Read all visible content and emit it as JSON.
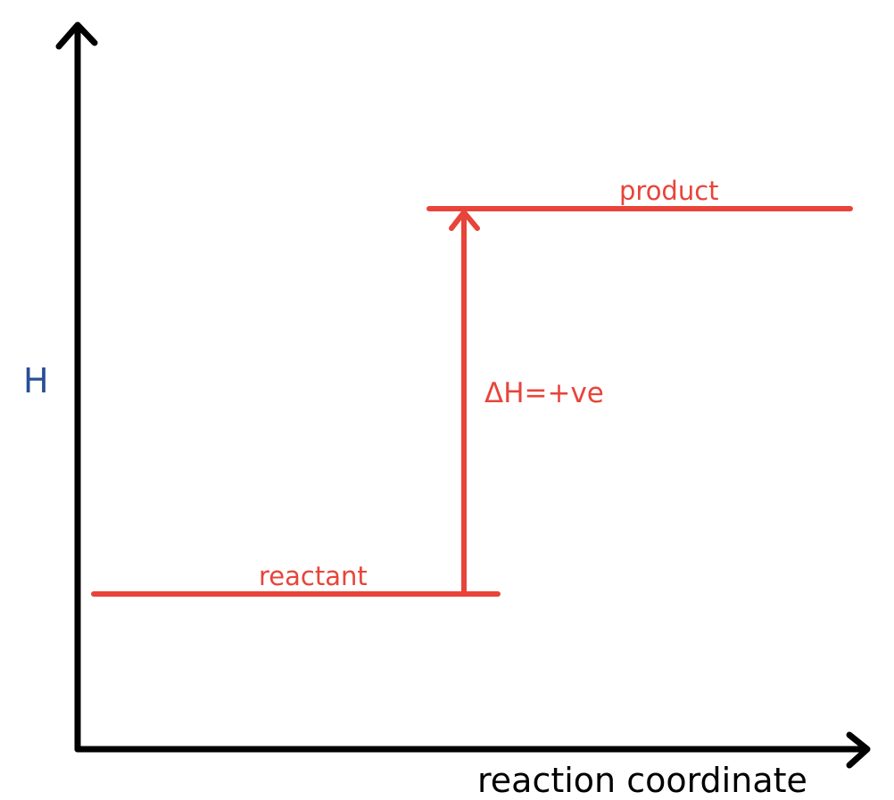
{
  "diagram": {
    "y_axis_label": "H",
    "x_axis_label": "reaction coordinate",
    "reactant_label": "reactant",
    "product_label": "product",
    "enthalpy_change_label": "ΔH=+ve"
  },
  "colors": {
    "axes": "#000000",
    "levels": "#e8443a",
    "y_axis_label": "#2a4f96",
    "x_axis_label": "#000000"
  }
}
